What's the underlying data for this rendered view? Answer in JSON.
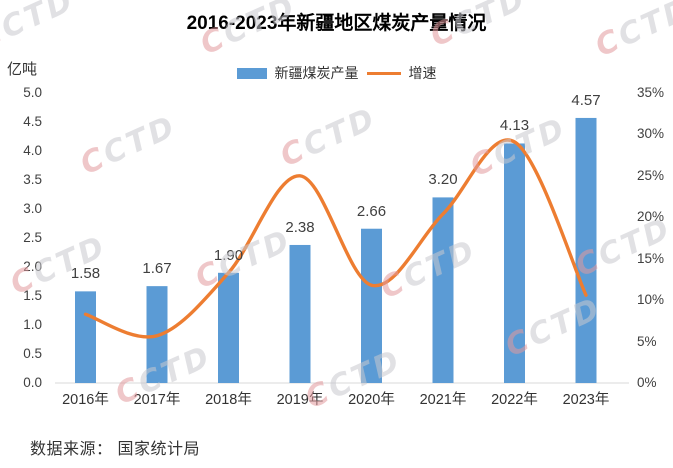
{
  "title": "2016-2023年新疆地区煤炭产量情况",
  "y_axis_unit": "亿吨",
  "legend": {
    "items": [
      {
        "label": "新疆煤炭产量",
        "type": "bar",
        "color": "#5B9BD5"
      },
      {
        "label": "增速",
        "type": "line",
        "color": "#ED7D31"
      }
    ]
  },
  "footer": {
    "text": "数据来源： 国家统计局"
  },
  "watermark": {
    "text": "CCTD"
  },
  "chart_data": {
    "type": "bar",
    "subtype": "combo-bar-line",
    "title": "2016-2023年新疆地区煤炭产量情况",
    "categories": [
      "2016年",
      "2017年",
      "2018年",
      "2019年",
      "2020年",
      "2021年",
      "2022年",
      "2023年"
    ],
    "series": [
      {
        "name": "新疆煤炭产量",
        "type": "bar",
        "axis": "left",
        "color": "#5B9BD5",
        "values": [
          1.58,
          1.67,
          1.9,
          2.38,
          2.66,
          3.2,
          4.13,
          4.57
        ],
        "data_labels": [
          "1.58",
          "1.67",
          "1.90",
          "2.38",
          "2.66",
          "3.20",
          "4.13",
          "4.57"
        ]
      },
      {
        "name": "增速",
        "type": "line",
        "axis": "right",
        "color": "#ED7D31",
        "values_pct_estimated": [
          8.3,
          5.7,
          13.3,
          25.0,
          11.8,
          20.4,
          29.1,
          10.6
        ]
      }
    ],
    "left_axis": {
      "label": "亿吨",
      "min": 0.0,
      "max": 5.0,
      "step": 0.5,
      "tick_labels": [
        "5.0",
        "4.5",
        "4.0",
        "3.5",
        "3.0",
        "2.5",
        "2.0",
        "1.5",
        "1.0",
        "0.5",
        "0.0"
      ]
    },
    "right_axis": {
      "min": "0%",
      "max": "35%",
      "step": "5%",
      "tick_labels": [
        "35%",
        "30%",
        "25%",
        "20%",
        "15%",
        "10%",
        "5%",
        "0%"
      ]
    },
    "grid": "off",
    "legend_position": "top",
    "source": "数据来源： 国家统计局"
  }
}
